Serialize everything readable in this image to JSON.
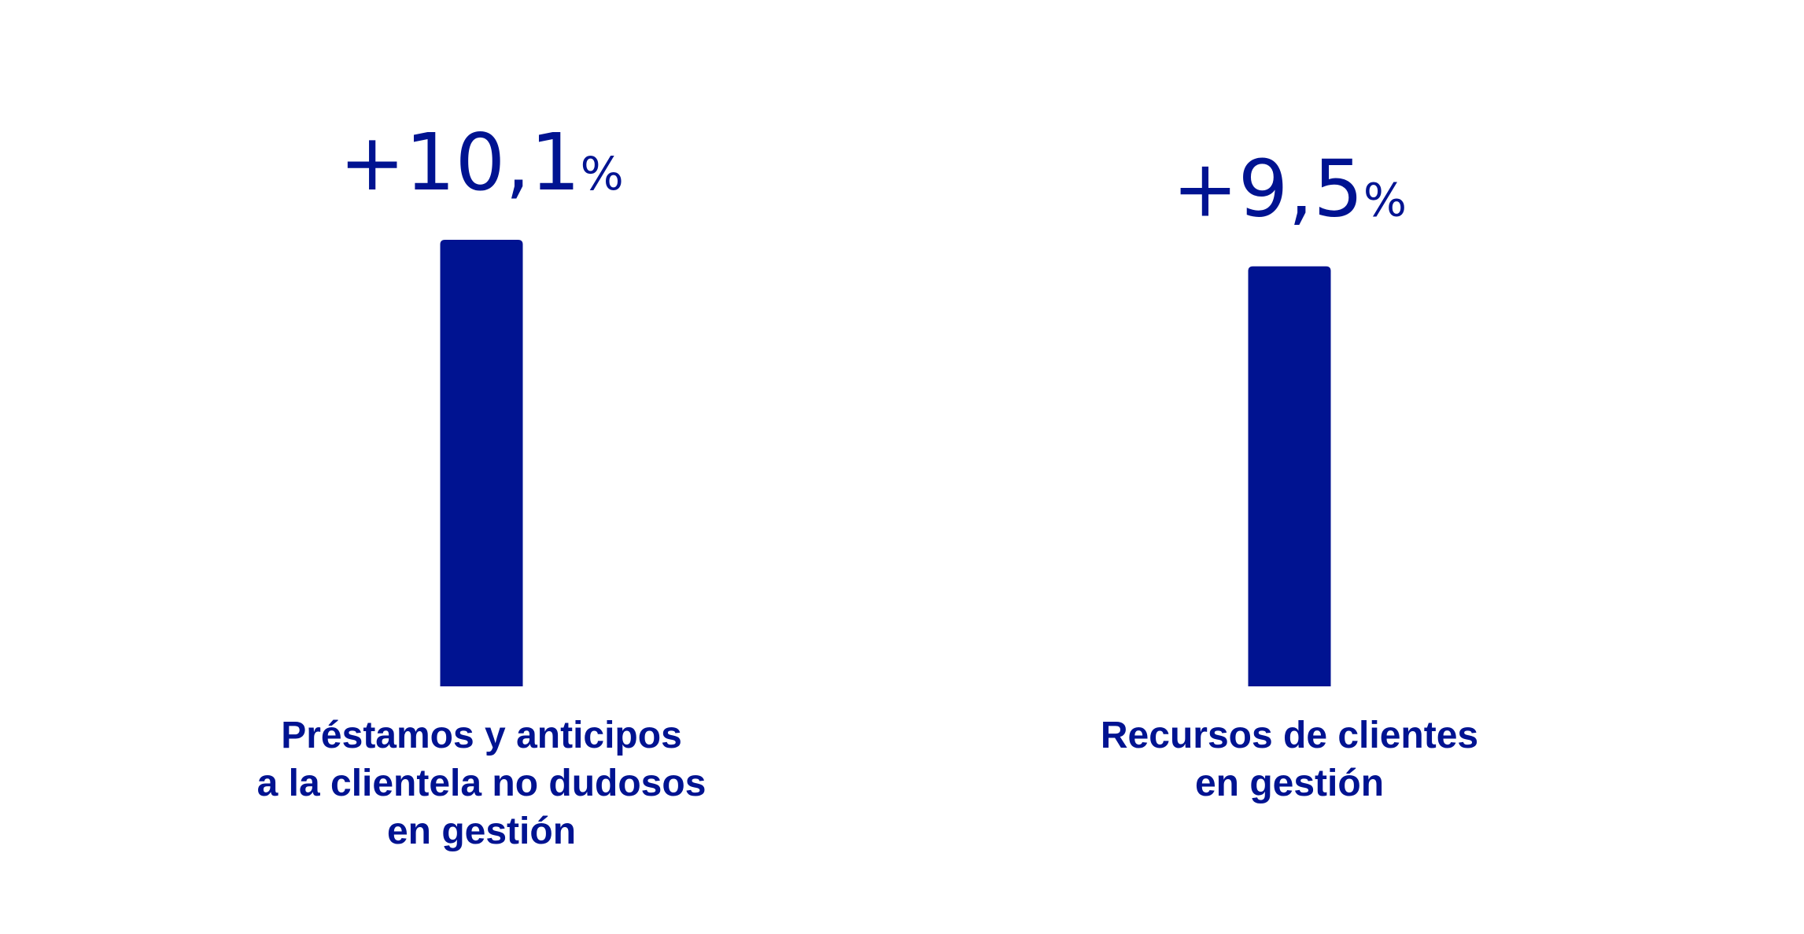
{
  "chart_data": {
    "type": "bar",
    "categories": [
      "Préstamos y anticipos\na la clientela no dudosos\nen gestión",
      "Recursos de clientes\nen gestión"
    ],
    "values": [
      10.1,
      9.5
    ],
    "value_labels": [
      "+10,1%",
      "+9,5%"
    ],
    "color": "#001391"
  }
}
